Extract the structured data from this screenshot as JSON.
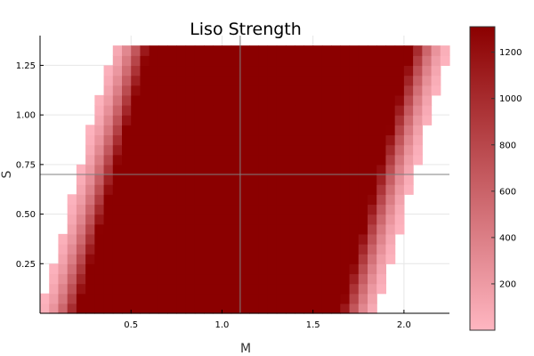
{
  "chart_data": {
    "type": "heatmap",
    "title": "Liso Strength",
    "xlabel": "M",
    "ylabel": "S",
    "xlim": [
      0,
      2.25
    ],
    "ylim": [
      0,
      1.4
    ],
    "x_ticks": [
      0.5,
      1.0,
      1.5,
      2.0
    ],
    "y_ticks": [
      0.25,
      0.5,
      0.75,
      1.0,
      1.25
    ],
    "x_tick_labels": [
      "0.5",
      "1.0",
      "1.5",
      "2.0"
    ],
    "y_tick_labels": [
      "0.25",
      "0.50",
      "0.75",
      "1.00",
      "1.25"
    ],
    "grid": true,
    "reference_lines": {
      "vertical_x": 1.1,
      "horizontal_y": 0.7
    },
    "cell_size": {
      "dx": 0.05,
      "dy": 0.05
    },
    "value_range": [
      0,
      1310
    ],
    "colorbar": {
      "placement": "right",
      "ticks": [
        200,
        400,
        600,
        800,
        1000,
        1200
      ],
      "tick_labels": [
        "200",
        "400",
        "600",
        "800",
        "1000",
        "1200"
      ],
      "color_low": "#ffb6c1",
      "color_high": "#8b0000"
    },
    "region": {
      "y_min": 0.0,
      "y_max": 1.35,
      "left_edge_at_y_min": 0.0,
      "left_edge_at_y_max": 0.4,
      "right_edge_at_y_min": 1.85,
      "right_edge_at_y_max": 2.25,
      "plateau_value": 1310,
      "edge_ramp_cells": 4,
      "notes": "value saturates inside a parallelogram-shaped band and falls off to light pink over a few cells at the edges"
    }
  }
}
